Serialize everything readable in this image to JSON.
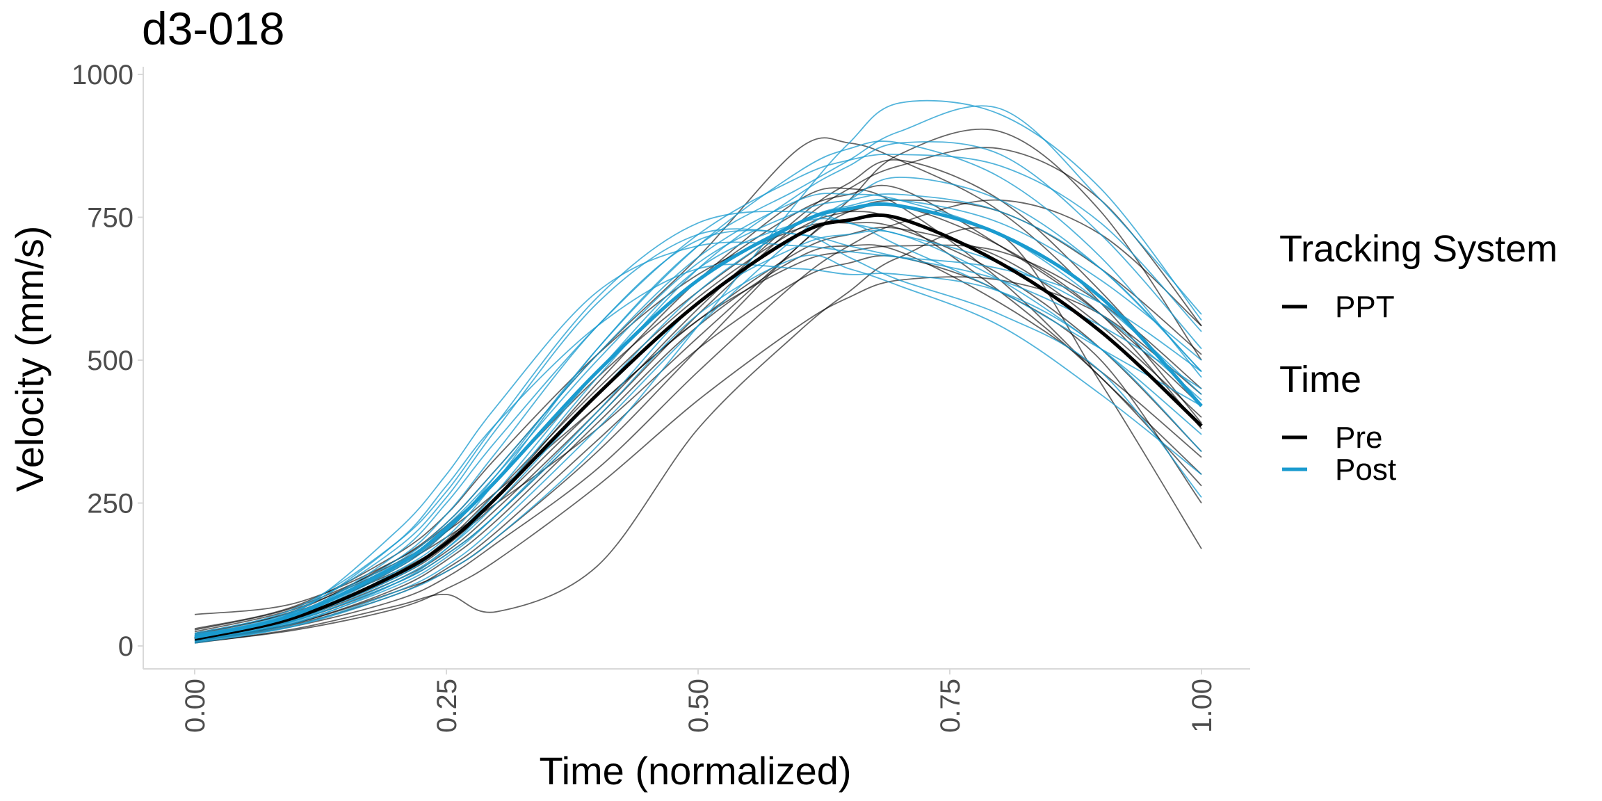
{
  "chart_data": {
    "type": "line",
    "title": "d3-018",
    "xlabel": "Time (normalized)",
    "ylabel": "Velocity (mm/s)",
    "xlim": [
      0,
      1
    ],
    "ylim": [
      0,
      1000
    ],
    "x_ticks": [
      "0.00",
      "0.25",
      "0.50",
      "0.75",
      "1.00"
    ],
    "y_ticks": [
      "0",
      "250",
      "500",
      "750",
      "1000"
    ],
    "x_tick_rotation": "vertical",
    "grid": false,
    "legend_position": "right",
    "legend": {
      "groups": [
        {
          "title": "Tracking System",
          "items": [
            {
              "label": "PPT",
              "color": "#000000"
            }
          ]
        },
        {
          "title": "Time",
          "items": [
            {
              "label": "Pre",
              "color": "#000000"
            },
            {
              "label": "Post",
              "color": "#1a9bcf"
            }
          ]
        }
      ]
    },
    "colors": {
      "pre": "#000000",
      "post": "#1a9bcf"
    },
    "x": [
      0.0,
      0.1,
      0.2,
      0.25,
      0.3,
      0.4,
      0.5,
      0.6,
      0.65,
      0.7,
      0.8,
      0.9,
      1.0
    ],
    "mean_series": [
      {
        "name": "Pre",
        "values": [
          12,
          50,
          125,
          180,
          260,
          440,
          600,
          720,
          745,
          748,
          670,
          550,
          385
        ]
      },
      {
        "name": "Post",
        "values": [
          15,
          55,
          140,
          205,
          290,
          480,
          640,
          740,
          765,
          770,
          720,
          610,
          420
        ]
      }
    ],
    "trials": [
      {
        "group": "Pre",
        "values": [
          55,
          75,
          150,
          210,
          290,
          480,
          640,
          760,
          790,
          800,
          700,
          580,
          420
        ]
      },
      {
        "group": "Pre",
        "values": [
          10,
          40,
          95,
          130,
          190,
          340,
          520,
          700,
          760,
          780,
          760,
          660,
          510
        ]
      },
      {
        "group": "Pre",
        "values": [
          20,
          60,
          130,
          180,
          250,
          420,
          570,
          690,
          720,
          730,
          680,
          560,
          400
        ]
      },
      {
        "group": "Pre",
        "values": [
          5,
          30,
          70,
          90,
          60,
          140,
          380,
          550,
          620,
          680,
          720,
          460,
          170
        ]
      },
      {
        "group": "Pre",
        "values": [
          30,
          70,
          160,
          230,
          330,
          510,
          650,
          730,
          740,
          730,
          650,
          520,
          340
        ]
      },
      {
        "group": "Pre",
        "values": [
          15,
          45,
          110,
          160,
          230,
          400,
          580,
          740,
          800,
          840,
          870,
          780,
          560
        ]
      },
      {
        "group": "Pre",
        "values": [
          8,
          35,
          80,
          120,
          180,
          310,
          480,
          640,
          700,
          740,
          780,
          720,
          560
        ]
      },
      {
        "group": "Pre",
        "values": [
          25,
          65,
          140,
          190,
          250,
          380,
          540,
          700,
          780,
          860,
          900,
          760,
          500
        ]
      },
      {
        "group": "Pre",
        "values": [
          12,
          50,
          120,
          175,
          260,
          460,
          640,
          780,
          800,
          770,
          640,
          470,
          300
        ]
      },
      {
        "group": "Pre",
        "values": [
          18,
          55,
          135,
          200,
          290,
          470,
          620,
          740,
          760,
          740,
          620,
          470,
          280
        ]
      },
      {
        "group": "Pre",
        "values": [
          6,
          28,
          65,
          100,
          150,
          280,
          430,
          560,
          610,
          640,
          640,
          580,
          440
        ]
      },
      {
        "group": "Pre",
        "values": [
          22,
          62,
          150,
          215,
          310,
          510,
          680,
          870,
          880,
          850,
          760,
          600,
          390
        ]
      },
      {
        "group": "Pre",
        "values": [
          10,
          40,
          100,
          150,
          220,
          390,
          560,
          680,
          700,
          690,
          600,
          480,
          330
        ]
      },
      {
        "group": "Pre",
        "values": [
          28,
          68,
          145,
          200,
          270,
          420,
          570,
          670,
          690,
          700,
          690,
          600,
          450
        ]
      },
      {
        "group": "Pre",
        "values": [
          14,
          48,
          115,
          165,
          240,
          410,
          590,
          750,
          810,
          850,
          780,
          620,
          420
        ]
      },
      {
        "group": "Pre",
        "values": [
          9,
          38,
          90,
          135,
          200,
          360,
          520,
          640,
          670,
          680,
          620,
          500,
          250
        ]
      },
      {
        "group": "Pre",
        "values": [
          16,
          52,
          125,
          185,
          270,
          450,
          610,
          730,
          760,
          770,
          700,
          580,
          380
        ]
      },
      {
        "group": "Post",
        "values": [
          20,
          60,
          200,
          300,
          420,
          620,
          700,
          700,
          690,
          680,
          660,
          600,
          480
        ]
      },
      {
        "group": "Post",
        "values": [
          10,
          45,
          130,
          190,
          290,
          520,
          700,
          800,
          850,
          900,
          940,
          780,
          580
        ]
      },
      {
        "group": "Post",
        "values": [
          8,
          40,
          110,
          170,
          260,
          470,
          660,
          790,
          840,
          880,
          860,
          720,
          520
        ]
      },
      {
        "group": "Post",
        "values": [
          15,
          55,
          160,
          250,
          360,
          560,
          720,
          820,
          850,
          860,
          840,
          740,
          550
        ]
      },
      {
        "group": "Post",
        "values": [
          12,
          48,
          120,
          180,
          270,
          480,
          660,
          740,
          740,
          700,
          620,
          520,
          420
        ]
      },
      {
        "group": "Post",
        "values": [
          18,
          62,
          170,
          260,
          380,
          600,
          720,
          720,
          700,
          680,
          640,
          560,
          450
        ]
      },
      {
        "group": "Post",
        "values": [
          5,
          35,
          90,
          130,
          190,
          350,
          560,
          780,
          880,
          950,
          930,
          800,
          570
        ]
      },
      {
        "group": "Post",
        "values": [
          22,
          66,
          180,
          270,
          390,
          610,
          740,
          760,
          740,
          720,
          670,
          580,
          430
        ]
      },
      {
        "group": "Post",
        "values": [
          10,
          50,
          135,
          200,
          300,
          520,
          700,
          830,
          870,
          880,
          820,
          680,
          470
        ]
      },
      {
        "group": "Post",
        "values": [
          14,
          52,
          140,
          210,
          300,
          500,
          670,
          760,
          780,
          790,
          760,
          660,
          480
        ]
      },
      {
        "group": "Post",
        "values": [
          9,
          42,
          105,
          155,
          230,
          410,
          600,
          700,
          720,
          720,
          640,
          520,
          370
        ]
      },
      {
        "group": "Post",
        "values": [
          16,
          58,
          150,
          230,
          340,
          560,
          710,
          720,
          680,
          640,
          580,
          480,
          260
        ]
      },
      {
        "group": "Post",
        "values": [
          12,
          46,
          110,
          160,
          230,
          400,
          580,
          680,
          660,
          630,
          560,
          440,
          300
        ]
      },
      {
        "group": "Post",
        "values": [
          20,
          60,
          180,
          280,
          390,
          560,
          660,
          660,
          650,
          650,
          620,
          520,
          340
        ]
      },
      {
        "group": "Post",
        "values": [
          11,
          44,
          115,
          170,
          250,
          440,
          620,
          740,
          770,
          780,
          740,
          640,
          500
        ]
      },
      {
        "group": "Post",
        "values": [
          7,
          36,
          95,
          140,
          210,
          380,
          560,
          720,
          780,
          820,
          780,
          660,
          480
        ]
      },
      {
        "group": "Post",
        "values": [
          17,
          56,
          145,
          215,
          310,
          510,
          680,
          780,
          790,
          780,
          720,
          600,
          440
        ]
      }
    ]
  }
}
